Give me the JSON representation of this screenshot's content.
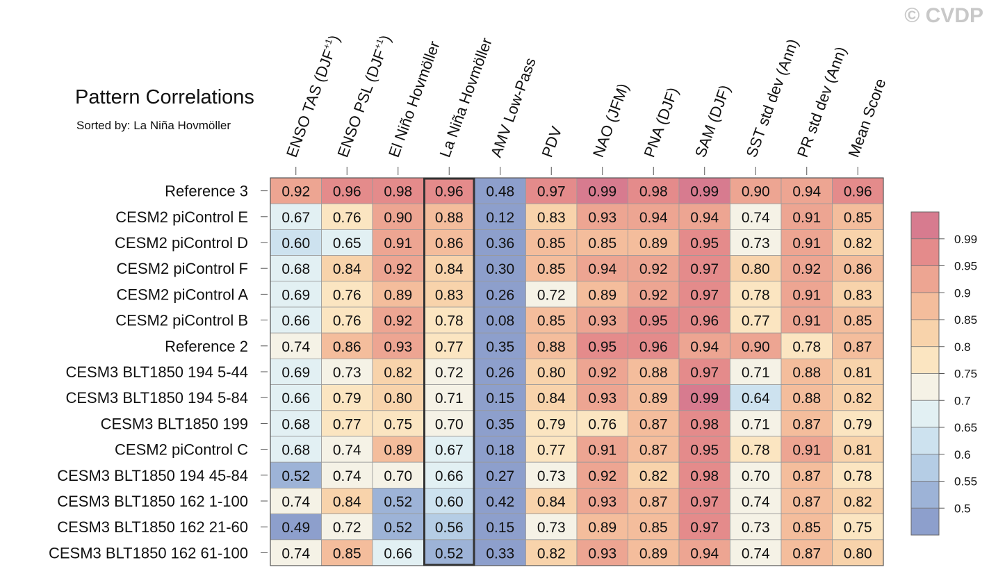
{
  "copyright": "© CVDP",
  "chart_data": {
    "type": "heatmap",
    "title": "Pattern Correlations",
    "subtitle": "Sorted by: La Niña Hovmöller",
    "highlighted_column": "La Niña Hovmöller",
    "columns": [
      {
        "label": "ENSO TAS (DJF",
        "sup": "+1",
        "close": ")"
      },
      {
        "label": "ENSO PSL (DJF",
        "sup": "+1",
        "close": ")"
      },
      {
        "label": "El Niño Hovmöller",
        "sup": "",
        "close": ""
      },
      {
        "label": "La Niña Hovmöller",
        "sup": "",
        "close": ""
      },
      {
        "label": "AMV Low-Pass",
        "sup": "",
        "close": ""
      },
      {
        "label": "PDV",
        "sup": "",
        "close": ""
      },
      {
        "label": "NAO (JFM)",
        "sup": "",
        "close": ""
      },
      {
        "label": "PNA (DJF)",
        "sup": "",
        "close": ""
      },
      {
        "label": "SAM (DJF)",
        "sup": "",
        "close": ""
      },
      {
        "label": "SST std dev (Ann)",
        "sup": "",
        "close": ""
      },
      {
        "label": "PR std dev (Ann)",
        "sup": "",
        "close": ""
      },
      {
        "label": "Mean Score",
        "sup": "",
        "close": ""
      }
    ],
    "rows": [
      "Reference 3",
      "CESM2 piControl E",
      "CESM2 piControl D",
      "CESM2 piControl F",
      "CESM2 piControl A",
      "CESM2 piControl B",
      "Reference 2",
      "CESM3 BLT1850 194 5-44",
      "CESM3 BLT1850 194 5-84",
      "CESM3 BLT1850 199",
      "CESM2 piControl C",
      "CESM3 BLT1850 194 45-84",
      "CESM3 BLT1850 162 1-100",
      "CESM3 BLT1850 162 21-60",
      "CESM3 BLT1850 162 61-100"
    ],
    "values": [
      [
        "0.92",
        "0.96",
        "0.98",
        "0.96",
        "0.48",
        "0.97",
        "0.99",
        "0.98",
        "0.99",
        "0.90",
        "0.94",
        "0.96"
      ],
      [
        "0.67",
        "0.76",
        "0.90",
        "0.88",
        "0.12",
        "0.83",
        "0.93",
        "0.94",
        "0.94",
        "0.74",
        "0.91",
        "0.85"
      ],
      [
        "0.60",
        "0.65",
        "0.91",
        "0.86",
        "0.36",
        "0.85",
        "0.85",
        "0.89",
        "0.95",
        "0.73",
        "0.91",
        "0.82"
      ],
      [
        "0.68",
        "0.84",
        "0.92",
        "0.84",
        "0.30",
        "0.85",
        "0.94",
        "0.92",
        "0.97",
        "0.80",
        "0.92",
        "0.86"
      ],
      [
        "0.69",
        "0.76",
        "0.89",
        "0.83",
        "0.26",
        "0.72",
        "0.89",
        "0.92",
        "0.97",
        "0.78",
        "0.91",
        "0.83"
      ],
      [
        "0.66",
        "0.76",
        "0.92",
        "0.78",
        "0.08",
        "0.85",
        "0.93",
        "0.95",
        "0.96",
        "0.77",
        "0.91",
        "0.85"
      ],
      [
        "0.74",
        "0.86",
        "0.93",
        "0.77",
        "0.35",
        "0.88",
        "0.95",
        "0.96",
        "0.94",
        "0.90",
        "0.78",
        "0.87"
      ],
      [
        "0.69",
        "0.73",
        "0.82",
        "0.72",
        "0.26",
        "0.80",
        "0.92",
        "0.88",
        "0.97",
        "0.71",
        "0.88",
        "0.81"
      ],
      [
        "0.66",
        "0.79",
        "0.80",
        "0.71",
        "0.15",
        "0.84",
        "0.93",
        "0.89",
        "0.99",
        "0.64",
        "0.88",
        "0.82"
      ],
      [
        "0.68",
        "0.77",
        "0.75",
        "0.70",
        "0.35",
        "0.79",
        "0.76",
        "0.87",
        "0.98",
        "0.71",
        "0.87",
        "0.79"
      ],
      [
        "0.68",
        "0.74",
        "0.89",
        "0.67",
        "0.18",
        "0.77",
        "0.91",
        "0.87",
        "0.95",
        "0.78",
        "0.91",
        "0.81"
      ],
      [
        "0.52",
        "0.74",
        "0.70",
        "0.66",
        "0.27",
        "0.73",
        "0.92",
        "0.82",
        "0.98",
        "0.70",
        "0.87",
        "0.78"
      ],
      [
        "0.74",
        "0.84",
        "0.52",
        "0.60",
        "0.42",
        "0.84",
        "0.93",
        "0.87",
        "0.97",
        "0.74",
        "0.87",
        "0.82"
      ],
      [
        "0.49",
        "0.72",
        "0.52",
        "0.56",
        "0.15",
        "0.73",
        "0.89",
        "0.85",
        "0.97",
        "0.73",
        "0.85",
        "0.75"
      ],
      [
        "0.74",
        "0.85",
        "0.66",
        "0.52",
        "0.33",
        "0.82",
        "0.93",
        "0.89",
        "0.94",
        "0.74",
        "0.87",
        "0.80"
      ]
    ],
    "legend": {
      "ticks": [
        "0.99",
        "0.95",
        "0.9",
        "0.85",
        "0.8",
        "0.75",
        "0.7",
        "0.65",
        "0.6",
        "0.55",
        "0.5"
      ],
      "colors": [
        "#d77b8f",
        "#e48b8b",
        "#eda592",
        "#f4bd9c",
        "#f8d3ab",
        "#fbe5c1",
        "#f5f2e6",
        "#e2f0f3",
        "#cde2ef",
        "#b5cde5",
        "#9db3d7",
        "#8d9fcc"
      ],
      "placement": "right"
    }
  }
}
